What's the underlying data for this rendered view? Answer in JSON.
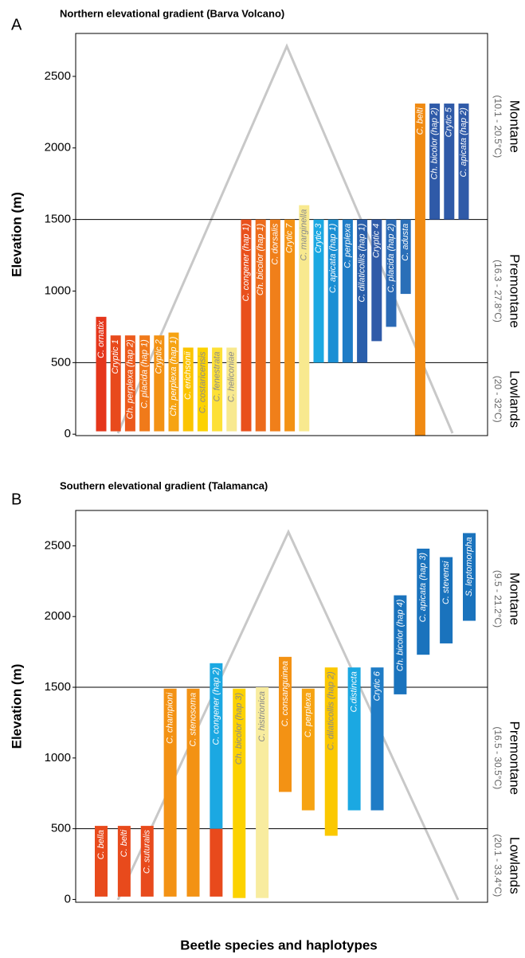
{
  "chart_data": [
    {
      "type": "floating-bar",
      "panel": "A",
      "title": "Northern elevational gradient (Barva Volcano)",
      "ylabel": "Elevation (m)",
      "ylim": [
        -10,
        2800
      ],
      "yticks": [
        0,
        500,
        1000,
        1500,
        2000,
        2500
      ],
      "hlines": [
        500,
        1500
      ],
      "zones": [
        {
          "name": "Montane",
          "range": "(10.1 - 20.5°C)"
        },
        {
          "name": "Premontane",
          "range": "(16.3 - 27.8°C)"
        },
        {
          "name": "Lowlands",
          "range": "(20 - 32°C)"
        }
      ],
      "categories": [
        "C. ornatix",
        "Cryptic 1",
        "Ch. perplexa (hap 2)",
        "C. placida (hap 1)",
        "Cryptic 2",
        "Ch. perplexa (hap 1)",
        "C. erichsonii",
        "C. costaricensis",
        "C. fenestrata",
        "C. heliconiae",
        "C. congener (hap 1)",
        "Ch. bicolor (hap 1)",
        "C. dorsalis",
        "Crytic 7",
        "C. marginella",
        "Crytic 3",
        "C. apicata (hap 1)",
        "C. perplexa",
        "C. dilaticollis (hap 1)",
        "Cryptic 4",
        "C. placida (hap 2)",
        "C. adusta",
        "C. belti",
        "Ch. bicolor (hap 2)",
        "Crytic 5",
        "C. apicata (hap 2)"
      ],
      "bars": [
        {
          "segments": [
            {
              "low": 20,
              "high": 820,
              "color": "#e5361b"
            }
          ]
        },
        {
          "segments": [
            {
              "low": 20,
              "high": 690,
              "color": "#e84a1c"
            }
          ]
        },
        {
          "segments": [
            {
              "low": 20,
              "high": 690,
              "color": "#ec5a1c"
            }
          ]
        },
        {
          "segments": [
            {
              "low": 20,
              "high": 690,
              "color": "#f07a1a"
            }
          ]
        },
        {
          "segments": [
            {
              "low": 20,
              "high": 690,
              "color": "#f39214"
            }
          ]
        },
        {
          "segments": [
            {
              "low": 20,
              "high": 710,
              "color": "#f6a312"
            }
          ]
        },
        {
          "segments": [
            {
              "low": 20,
              "high": 605,
              "color": "#fbc400"
            }
          ]
        },
        {
          "segments": [
            {
              "low": 20,
              "high": 605,
              "color": "#fcd200"
            }
          ]
        },
        {
          "segments": [
            {
              "low": 20,
              "high": 605,
              "color": "#fde036"
            }
          ]
        },
        {
          "segments": [
            {
              "low": 20,
              "high": 605,
              "color": "#f8e98f"
            }
          ]
        },
        {
          "segments": [
            {
              "low": 20,
              "high": 1500,
              "color": "#e9501c"
            }
          ]
        },
        {
          "segments": [
            {
              "low": 20,
              "high": 1500,
              "color": "#ec6b1c"
            }
          ]
        },
        {
          "segments": [
            {
              "low": 20,
              "high": 1500,
              "color": "#f07f1a"
            }
          ]
        },
        {
          "segments": [
            {
              "low": 20,
              "high": 1500,
              "color": "#f39214"
            }
          ]
        },
        {
          "segments": [
            {
              "low": 20,
              "high": 1600,
              "color": "#f8e98f"
            }
          ]
        },
        {
          "segments": [
            {
              "low": 500,
              "high": 1500,
              "color": "#1ba8e2"
            }
          ]
        },
        {
          "segments": [
            {
              "low": 500,
              "high": 1500,
              "color": "#1a8fd4"
            }
          ]
        },
        {
          "segments": [
            {
              "low": 500,
              "high": 1500,
              "color": "#1f7cc6"
            }
          ]
        },
        {
          "segments": [
            {
              "low": 500,
              "high": 1500,
              "color": "#2a5fab"
            }
          ]
        },
        {
          "segments": [
            {
              "low": 650,
              "high": 1500,
              "color": "#2f5aa8"
            }
          ]
        },
        {
          "segments": [
            {
              "low": 750,
              "high": 1500,
              "color": "#2b6ab5"
            }
          ]
        },
        {
          "segments": [
            {
              "low": 980,
              "high": 1500,
              "color": "#2a6fb8"
            }
          ]
        },
        {
          "segments": [
            {
              "low": -10,
              "high": 2310,
              "color": "#f08a12"
            }
          ]
        },
        {
          "segments": [
            {
              "low": 1500,
              "high": 2310,
              "color": "#2f5aa8"
            }
          ]
        },
        {
          "segments": [
            {
              "low": 1500,
              "high": 2310,
              "color": "#2f5aa8"
            }
          ]
        },
        {
          "segments": [
            {
              "low": 1500,
              "high": 2310,
              "color": "#2f5aa8"
            }
          ]
        }
      ]
    },
    {
      "type": "floating-bar",
      "panel": "B",
      "title": "Southern elevational gradient (Talamanca)",
      "ylabel": "Elevation (m)",
      "xlabel": "Beetle species and haplotypes",
      "ylim": [
        -20,
        2750
      ],
      "yticks": [
        0,
        500,
        1000,
        1500,
        2000,
        2500
      ],
      "hlines": [
        500,
        1500
      ],
      "zones": [
        {
          "name": "Montane",
          "range": "(9.5 - 21.2°C)"
        },
        {
          "name": "Premontane",
          "range": "(16.5 - 30.5°C)"
        },
        {
          "name": "Lowlands",
          "range": "(20.1 - 33.4°C)"
        }
      ],
      "categories": [
        "C. bella",
        "C. belti",
        "C. suturalis",
        "C. championi",
        "C. stenosoma",
        "C. congener (hap 2)",
        "Ch. bicolor (hap 3)",
        "C. histrionica",
        "C. consanguinea",
        "C. perplexa",
        "C. dilaticollis (hap 2)",
        "C.distincta",
        "Crytic 6",
        "Ch. bicolor (hap 4)",
        "C. apicata (hap 3)",
        "C. stevensi",
        "S. leptomorpha"
      ],
      "bars": [
        {
          "segments": [
            {
              "low": 20,
              "high": 520,
              "color": "#e84a1c"
            }
          ]
        },
        {
          "segments": [
            {
              "low": 20,
              "high": 520,
              "color": "#e84a1c"
            }
          ]
        },
        {
          "segments": [
            {
              "low": 20,
              "high": 520,
              "color": "#e84a1c"
            }
          ]
        },
        {
          "segments": [
            {
              "low": 20,
              "high": 1490,
              "color": "#f39214"
            }
          ]
        },
        {
          "segments": [
            {
              "low": 20,
              "high": 1490,
              "color": "#f39214"
            }
          ]
        },
        {
          "segments": [
            {
              "low": 20,
              "high": 500,
              "color": "#e84a1c"
            },
            {
              "low": 500,
              "high": 1670,
              "color": "#1ba8e2"
            }
          ]
        },
        {
          "segments": [
            {
              "low": 10,
              "high": 1490,
              "color": "#fcd200"
            }
          ]
        },
        {
          "segments": [
            {
              "low": 10,
              "high": 1500,
              "color": "#f8ec9f"
            }
          ]
        },
        {
          "segments": [
            {
              "low": 760,
              "high": 1715,
              "color": "#f39214"
            }
          ]
        },
        {
          "segments": [
            {
              "low": 630,
              "high": 1490,
              "color": "#f6a312"
            }
          ]
        },
        {
          "segments": [
            {
              "low": 450,
              "high": 1640,
              "color": "#fbc800"
            }
          ]
        },
        {
          "segments": [
            {
              "low": 630,
              "high": 1640,
              "color": "#1ba8e2"
            }
          ]
        },
        {
          "segments": [
            {
              "low": 630,
              "high": 1640,
              "color": "#1f7cc6"
            }
          ]
        },
        {
          "segments": [
            {
              "low": 1450,
              "high": 2150,
              "color": "#1a73bd"
            }
          ]
        },
        {
          "segments": [
            {
              "low": 1730,
              "high": 2480,
              "color": "#1a73bd"
            }
          ]
        },
        {
          "segments": [
            {
              "low": 1810,
              "high": 2420,
              "color": "#1a73bd"
            }
          ]
        },
        {
          "segments": [
            {
              "low": 1970,
              "high": 2590,
              "color": "#1a73bd"
            }
          ]
        }
      ]
    }
  ]
}
